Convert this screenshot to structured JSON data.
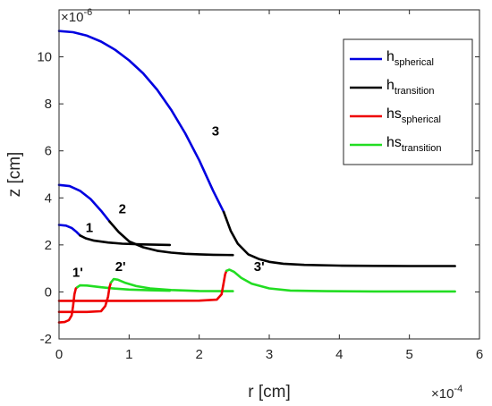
{
  "chart_data": {
    "type": "line",
    "xlabel": "r [cm]",
    "ylabel": "z [cm]",
    "x_exponent": {
      "base": "×10",
      "power": "-4"
    },
    "y_exponent": {
      "base": "×10",
      "power": "-6"
    },
    "xlim": [
      0,
      6
    ],
    "ylim": [
      -2,
      12
    ],
    "x_ticks": [
      "0",
      "1",
      "2",
      "3",
      "4",
      "5",
      "6"
    ],
    "y_ticks": [
      "-2",
      "0",
      "2",
      "4",
      "6",
      "8",
      "10"
    ],
    "legend_position": "top-right",
    "grid": false,
    "colors": {
      "h_spherical": "#0000e0",
      "h_transition": "#000000",
      "hs_spherical": "#ee0000",
      "hs_transition": "#22dd22"
    },
    "legend": [
      {
        "key": "h_spherical",
        "main": "h",
        "sub": "spherical"
      },
      {
        "key": "h_transition",
        "main": "h",
        "sub": "transition"
      },
      {
        "key": "hs_spherical",
        "main": "hs",
        "sub": "spherical"
      },
      {
        "key": "hs_transition",
        "main": "hs",
        "sub": "transition"
      }
    ],
    "series": [
      {
        "id": "case-1-h-spherical",
        "key": "h_spherical",
        "x": [
          0,
          0.1,
          0.18,
          0.25,
          0.3
        ],
        "y": [
          2.85,
          2.82,
          2.72,
          2.55,
          2.4
        ]
      },
      {
        "id": "case-1-h-transition",
        "key": "h_transition",
        "x": [
          0.3,
          0.38,
          0.5,
          0.7,
          0.9,
          1.2,
          1.58
        ],
        "y": [
          2.4,
          2.28,
          2.18,
          2.1,
          2.05,
          2.02,
          2.0
        ]
      },
      {
        "id": "case-2-h-spherical",
        "key": "h_spherical",
        "x": [
          0,
          0.15,
          0.3,
          0.45,
          0.6,
          0.72
        ],
        "y": [
          4.55,
          4.5,
          4.3,
          3.95,
          3.45,
          3.0
        ]
      },
      {
        "id": "case-2-h-transition",
        "key": "h_transition",
        "x": [
          0.72,
          0.85,
          1.0,
          1.2,
          1.4,
          1.6,
          1.8,
          2.0,
          2.2,
          2.48
        ],
        "y": [
          3.0,
          2.55,
          2.15,
          1.9,
          1.75,
          1.67,
          1.62,
          1.6,
          1.58,
          1.57
        ]
      },
      {
        "id": "case-3-h-spherical",
        "key": "h_spherical",
        "x": [
          0,
          0.2,
          0.4,
          0.6,
          0.8,
          1.0,
          1.2,
          1.4,
          1.6,
          1.8,
          2.0,
          2.2,
          2.35
        ],
        "y": [
          11.1,
          11.05,
          10.9,
          10.65,
          10.3,
          9.85,
          9.3,
          8.6,
          7.75,
          6.75,
          5.6,
          4.3,
          3.4
        ]
      },
      {
        "id": "case-3-h-transition",
        "key": "h_transition",
        "x": [
          2.35,
          2.45,
          2.55,
          2.7,
          2.85,
          3.0,
          3.2,
          3.5,
          4.0,
          4.5,
          5.0,
          5.65
        ],
        "y": [
          3.4,
          2.6,
          2.05,
          1.6,
          1.4,
          1.28,
          1.2,
          1.15,
          1.12,
          1.11,
          1.1,
          1.1
        ]
      },
      {
        "id": "case-1-hs-spherical",
        "key": "hs_spherical",
        "x": [
          0,
          0.08,
          0.14,
          0.18,
          0.2,
          0.22,
          0.24,
          0.26
        ],
        "y": [
          -1.3,
          -1.28,
          -1.2,
          -1.0,
          -0.6,
          -0.1,
          0.15,
          0.2
        ]
      },
      {
        "id": "case-1-hs-transition",
        "key": "hs_transition",
        "x": [
          0.26,
          0.3,
          0.4,
          0.6,
          0.8,
          1.0,
          1.3,
          1.58
        ],
        "y": [
          0.2,
          0.28,
          0.27,
          0.2,
          0.14,
          0.1,
          0.07,
          0.05
        ]
      },
      {
        "id": "case-2-hs-spherical",
        "key": "hs_spherical",
        "x": [
          0,
          0.4,
          0.6,
          0.66,
          0.7,
          0.72,
          0.74
        ],
        "y": [
          -0.85,
          -0.85,
          -0.82,
          -0.6,
          -0.2,
          0.2,
          0.4
        ]
      },
      {
        "id": "case-2-hs-transition",
        "key": "hs_transition",
        "x": [
          0.74,
          0.78,
          0.84,
          0.95,
          1.1,
          1.3,
          1.6,
          2.0,
          2.48
        ],
        "y": [
          0.4,
          0.55,
          0.52,
          0.38,
          0.25,
          0.15,
          0.08,
          0.04,
          0.03
        ]
      },
      {
        "id": "case-3-hs-spherical",
        "key": "hs_spherical",
        "x": [
          0,
          1.0,
          2.0,
          2.25,
          2.32,
          2.35,
          2.37,
          2.39
        ],
        "y": [
          -0.38,
          -0.38,
          -0.37,
          -0.33,
          -0.1,
          0.4,
          0.75,
          0.9
        ]
      },
      {
        "id": "case-3-hs-transition",
        "key": "hs_transition",
        "x": [
          2.39,
          2.43,
          2.5,
          2.6,
          2.75,
          3.0,
          3.3,
          3.8,
          4.5,
          5.65
        ],
        "y": [
          0.9,
          0.95,
          0.85,
          0.6,
          0.35,
          0.15,
          0.06,
          0.03,
          0.02,
          0.02
        ]
      }
    ],
    "annotations": [
      {
        "id": "label-1",
        "text": "1",
        "x": 0.38,
        "y": 2.55
      },
      {
        "id": "label-2",
        "text": "2",
        "x": 0.85,
        "y": 3.35
      },
      {
        "id": "label-3",
        "text": "3",
        "x": 2.18,
        "y": 6.65
      },
      {
        "id": "label-1-prime",
        "text": "1'",
        "x": 0.19,
        "y": 0.65
      },
      {
        "id": "label-2-prime",
        "text": "2'",
        "x": 0.8,
        "y": 0.9
      },
      {
        "id": "label-3-prime",
        "text": "3'",
        "x": 2.78,
        "y": 0.9
      }
    ]
  }
}
